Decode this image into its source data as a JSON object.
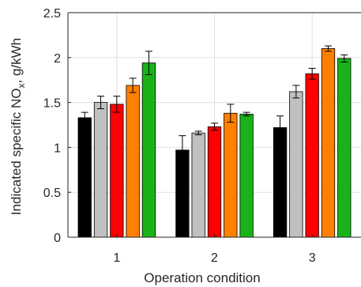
{
  "chart_data": {
    "type": "bar",
    "xlabel": "Operation condition",
    "ylabel_main": "Indicated specific NO",
    "ylabel_sub": "x",
    "ylabel_tail": ", g/kWh",
    "ylim": [
      0,
      2.5
    ],
    "yticks": [
      0,
      0.5,
      1,
      1.5,
      2,
      2.5
    ],
    "ytick_labels": [
      "0",
      "0.5",
      "1",
      "1.5",
      "2",
      "2.5"
    ],
    "categories": [
      "1",
      "2",
      "3"
    ],
    "grid": true,
    "series": [
      {
        "color": "#000000",
        "values": [
          1.33,
          0.97,
          1.22
        ],
        "errors": [
          0.06,
          0.16,
          0.13
        ]
      },
      {
        "color": "#c0c0c0",
        "values": [
          1.5,
          1.16,
          1.62
        ],
        "errors": [
          0.07,
          0.02,
          0.07
        ]
      },
      {
        "color": "#ff0000",
        "values": [
          1.48,
          1.23,
          1.82
        ],
        "errors": [
          0.09,
          0.04,
          0.06
        ]
      },
      {
        "color": "#ff8000",
        "values": [
          1.69,
          1.38,
          2.1
        ],
        "errors": [
          0.08,
          0.1,
          0.03
        ]
      },
      {
        "color": "#19b319",
        "values": [
          1.94,
          1.37,
          1.99
        ],
        "errors": [
          0.13,
          0.02,
          0.04
        ]
      }
    ]
  }
}
